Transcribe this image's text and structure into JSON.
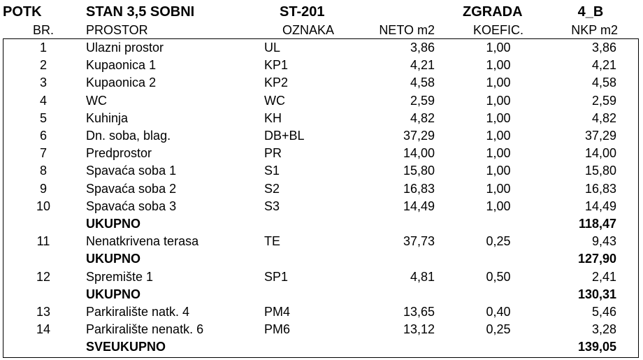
{
  "header": {
    "potk": "POTK",
    "stan": "STAN 3,5 SOBNI",
    "oznaka": "ST-201",
    "zgrada": "ZGRADA",
    "zgrada_id": "4_B"
  },
  "columns": {
    "br": "BR.",
    "prostor": "PROSTOR",
    "oznaka": "OZNAKA",
    "neto": "NETO m2",
    "koef": "KOEFIC.",
    "nkp": "NKP m2"
  },
  "rows": [
    {
      "br": "1",
      "prostor": "Ulazni prostor",
      "oznaka": "UL",
      "neto": "3,86",
      "koef": "1,00",
      "nkp": "3,86"
    },
    {
      "br": "2",
      "prostor": "Kupaonica 1",
      "oznaka": "KP1",
      "neto": "4,21",
      "koef": "1,00",
      "nkp": "4,21"
    },
    {
      "br": "3",
      "prostor": "Kupaonica 2",
      "oznaka": "KP2",
      "neto": "4,58",
      "koef": "1,00",
      "nkp": "4,58"
    },
    {
      "br": "4",
      "prostor": "WC",
      "oznaka": "WC",
      "neto": "2,59",
      "koef": "1,00",
      "nkp": "2,59"
    },
    {
      "br": "5",
      "prostor": "Kuhinja",
      "oznaka": "KH",
      "neto": "4,82",
      "koef": "1,00",
      "nkp": "4,82"
    },
    {
      "br": "6",
      "prostor": "Dn. soba, blag.",
      "oznaka": "DB+BL",
      "neto": "37,29",
      "koef": "1,00",
      "nkp": "37,29"
    },
    {
      "br": "7",
      "prostor": "Predprostor",
      "oznaka": "PR",
      "neto": "14,00",
      "koef": "1,00",
      "nkp": "14,00"
    },
    {
      "br": "8",
      "prostor": "Spavaća soba 1",
      "oznaka": "S1",
      "neto": "15,80",
      "koef": "1,00",
      "nkp": "15,80"
    },
    {
      "br": "9",
      "prostor": "Spavaća soba 2",
      "oznaka": "S2",
      "neto": "16,83",
      "koef": "1,00",
      "nkp": "16,83"
    },
    {
      "br": "10",
      "prostor": "Spavaća soba 3",
      "oznaka": "S3",
      "neto": "14,49",
      "koef": "1,00",
      "nkp": "14,49"
    },
    {
      "total_label": "UKUPNO",
      "total": "118,47"
    },
    {
      "br": "11",
      "prostor": "Nenatkrivena terasa",
      "oznaka": "TE",
      "neto": "37,73",
      "koef": "0,25",
      "nkp": "9,43"
    },
    {
      "total_label": "UKUPNO",
      "total": "127,90"
    },
    {
      "br": "12",
      "prostor": "Spremište 1",
      "oznaka": "SP1",
      "neto": "4,81",
      "koef": "0,50",
      "nkp": "2,41"
    },
    {
      "total_label": "UKUPNO",
      "total": "130,31"
    },
    {
      "br": "13",
      "prostor": "Parkiralište natk. 4",
      "oznaka": "PM4",
      "neto": "13,65",
      "koef": "0,40",
      "nkp": "5,46"
    },
    {
      "br": "14",
      "prostor": "Parkiralište nenatk. 6",
      "oznaka": "PM6",
      "neto": "13,12",
      "koef": "0,25",
      "nkp": "3,28"
    },
    {
      "total_label": "SVEUKUPNO",
      "total": "139,05"
    }
  ]
}
